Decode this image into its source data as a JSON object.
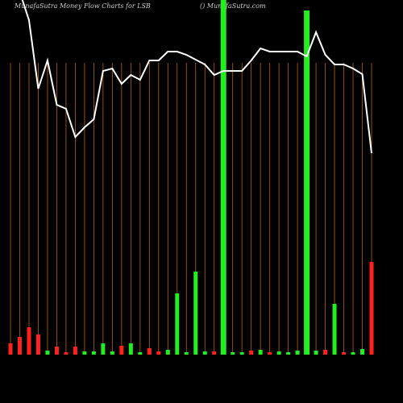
{
  "chart_data": {
    "type": "bar",
    "title": "MunafaSutra  Money Flow  Charts for LSB",
    "subtitle": "() MunafaSutra.com",
    "categories": [
      null,
      null,
      null,
      null,
      null,
      null,
      null,
      null,
      null,
      null,
      null,
      null,
      null,
      null,
      null,
      null,
      null,
      null,
      null,
      null,
      null,
      null,
      null,
      null,
      null,
      null,
      null,
      null,
      null,
      null,
      null,
      null,
      null,
      null,
      null,
      null,
      null,
      null,
      null,
      null
    ],
    "ylim": [
      0,
      440
    ],
    "y2lim": [
      0,
      500
    ],
    "series": [
      {
        "type": "bar",
        "values": [
          14,
          22,
          34,
          25,
          5,
          10,
          3,
          10,
          4,
          4,
          14,
          4,
          11,
          14,
          3,
          8,
          4,
          6,
          76,
          3,
          103,
          4,
          4,
          440,
          3,
          3,
          5,
          6,
          3,
          4,
          3,
          5,
          427,
          5,
          6,
          63,
          3,
          3,
          7,
          115
        ],
        "colors": [
          "#ff2020",
          "#ff2020",
          "#ff2020",
          "#ff2020",
          "#22ee22",
          "#ff2020",
          "#ff2020",
          "#ff2020",
          "#22ee22",
          "#22ee22",
          "#22ee22",
          "#22ee22",
          "#ff2020",
          "#22ee22",
          "#22ee22",
          "#ff2020",
          "#ff2020",
          "#22ee22",
          "#22ee22",
          "#22ee22",
          "#22ee22",
          "#22ee22",
          "#ff2020",
          "#22ee22",
          "#22ee22",
          "#22ee22",
          "#ff2020",
          "#22ee22",
          "#ff2020",
          "#22ee22",
          "#22ee22",
          "#22ee22",
          "#22ee22",
          "#22ee22",
          "#ff2020",
          "#22ee22",
          "#ff2020",
          "#22ee22",
          "#22ee22",
          "#ff2020"
        ]
      },
      {
        "type": "line",
        "axis": "y2",
        "color": "#ffffff",
        "values": [
          510,
          510,
          475,
          390,
          425,
          370,
          365,
          330,
          342,
          352,
          412,
          415,
          396,
          407,
          401,
          425,
          425,
          436,
          436,
          432,
          426,
          420,
          407,
          412,
          412,
          412,
          425,
          440,
          436,
          436,
          436,
          436,
          430,
          460,
          432,
          420,
          420,
          415,
          408,
          310
        ]
      }
    ]
  }
}
